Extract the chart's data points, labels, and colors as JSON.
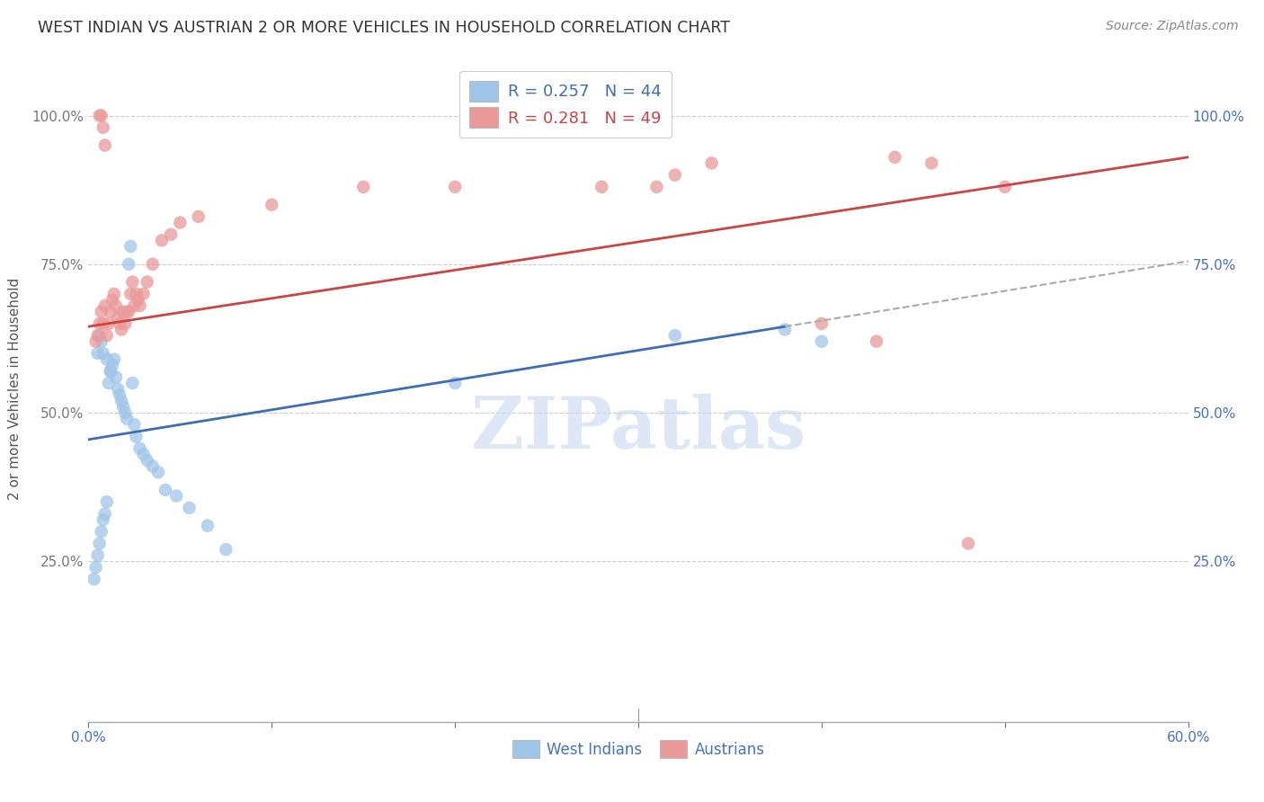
{
  "title": "WEST INDIAN VS AUSTRIAN 2 OR MORE VEHICLES IN HOUSEHOLD CORRELATION CHART",
  "source": "Source: ZipAtlas.com",
  "ylabel": "2 or more Vehicles in Household",
  "xlim": [
    0.0,
    0.6
  ],
  "ylim": [
    -0.02,
    1.1
  ],
  "ytick_positions": [
    0.25,
    0.5,
    0.75,
    1.0
  ],
  "legend_entries": [
    {
      "label": "R = 0.257   N = 44",
      "color": "#6fa8dc"
    },
    {
      "label": "R = 0.281   N = 49",
      "color": "#ea9999"
    }
  ],
  "west_indian_x": [
    0.003,
    0.004,
    0.005,
    0.006,
    0.007,
    0.008,
    0.009,
    0.01,
    0.011,
    0.012,
    0.013,
    0.014,
    0.015,
    0.016,
    0.017,
    0.018,
    0.019,
    0.02,
    0.021,
    0.022,
    0.023,
    0.024,
    0.025,
    0.026,
    0.028,
    0.03,
    0.032,
    0.035,
    0.038,
    0.042,
    0.048,
    0.055,
    0.065,
    0.075,
    0.2,
    0.32,
    0.38,
    0.4,
    0.005,
    0.006,
    0.007,
    0.008,
    0.01,
    0.012
  ],
  "west_indian_y": [
    0.22,
    0.24,
    0.26,
    0.28,
    0.3,
    0.32,
    0.33,
    0.35,
    0.55,
    0.57,
    0.58,
    0.59,
    0.56,
    0.54,
    0.53,
    0.52,
    0.51,
    0.5,
    0.49,
    0.75,
    0.78,
    0.55,
    0.48,
    0.46,
    0.44,
    0.43,
    0.42,
    0.41,
    0.4,
    0.37,
    0.36,
    0.34,
    0.31,
    0.27,
    0.55,
    0.63,
    0.64,
    0.62,
    0.6,
    0.63,
    0.62,
    0.6,
    0.59,
    0.57
  ],
  "austrian_x": [
    0.004,
    0.005,
    0.006,
    0.007,
    0.008,
    0.009,
    0.01,
    0.011,
    0.012,
    0.013,
    0.014,
    0.015,
    0.016,
    0.017,
    0.018,
    0.019,
    0.02,
    0.021,
    0.022,
    0.023,
    0.024,
    0.025,
    0.026,
    0.027,
    0.028,
    0.03,
    0.032,
    0.035,
    0.04,
    0.045,
    0.05,
    0.06,
    0.1,
    0.15,
    0.2,
    0.28,
    0.4,
    0.43,
    0.48,
    0.5,
    0.006,
    0.007,
    0.008,
    0.009,
    0.31,
    0.32,
    0.34,
    0.44,
    0.46
  ],
  "austrian_y": [
    0.62,
    0.63,
    0.65,
    0.67,
    0.65,
    0.68,
    0.63,
    0.65,
    0.67,
    0.69,
    0.7,
    0.68,
    0.66,
    0.65,
    0.64,
    0.67,
    0.65,
    0.67,
    0.67,
    0.7,
    0.72,
    0.68,
    0.7,
    0.69,
    0.68,
    0.7,
    0.72,
    0.75,
    0.79,
    0.8,
    0.82,
    0.83,
    0.85,
    0.88,
    0.88,
    0.88,
    0.65,
    0.62,
    0.28,
    0.88,
    1.0,
    1.0,
    0.98,
    0.95,
    0.88,
    0.9,
    0.92,
    0.93,
    0.92
  ],
  "blue_color": "#9fc5e8",
  "pink_color": "#ea9999",
  "blue_line_color": "#3d6eb5",
  "pink_line_color": "#cc4444",
  "watermark_text": "ZIPatlas",
  "watermark_color": "#c8d8f0",
  "background_color": "#ffffff",
  "grid_color": "#cccccc",
  "bottom_legend": [
    "West Indians",
    "Austrians"
  ]
}
